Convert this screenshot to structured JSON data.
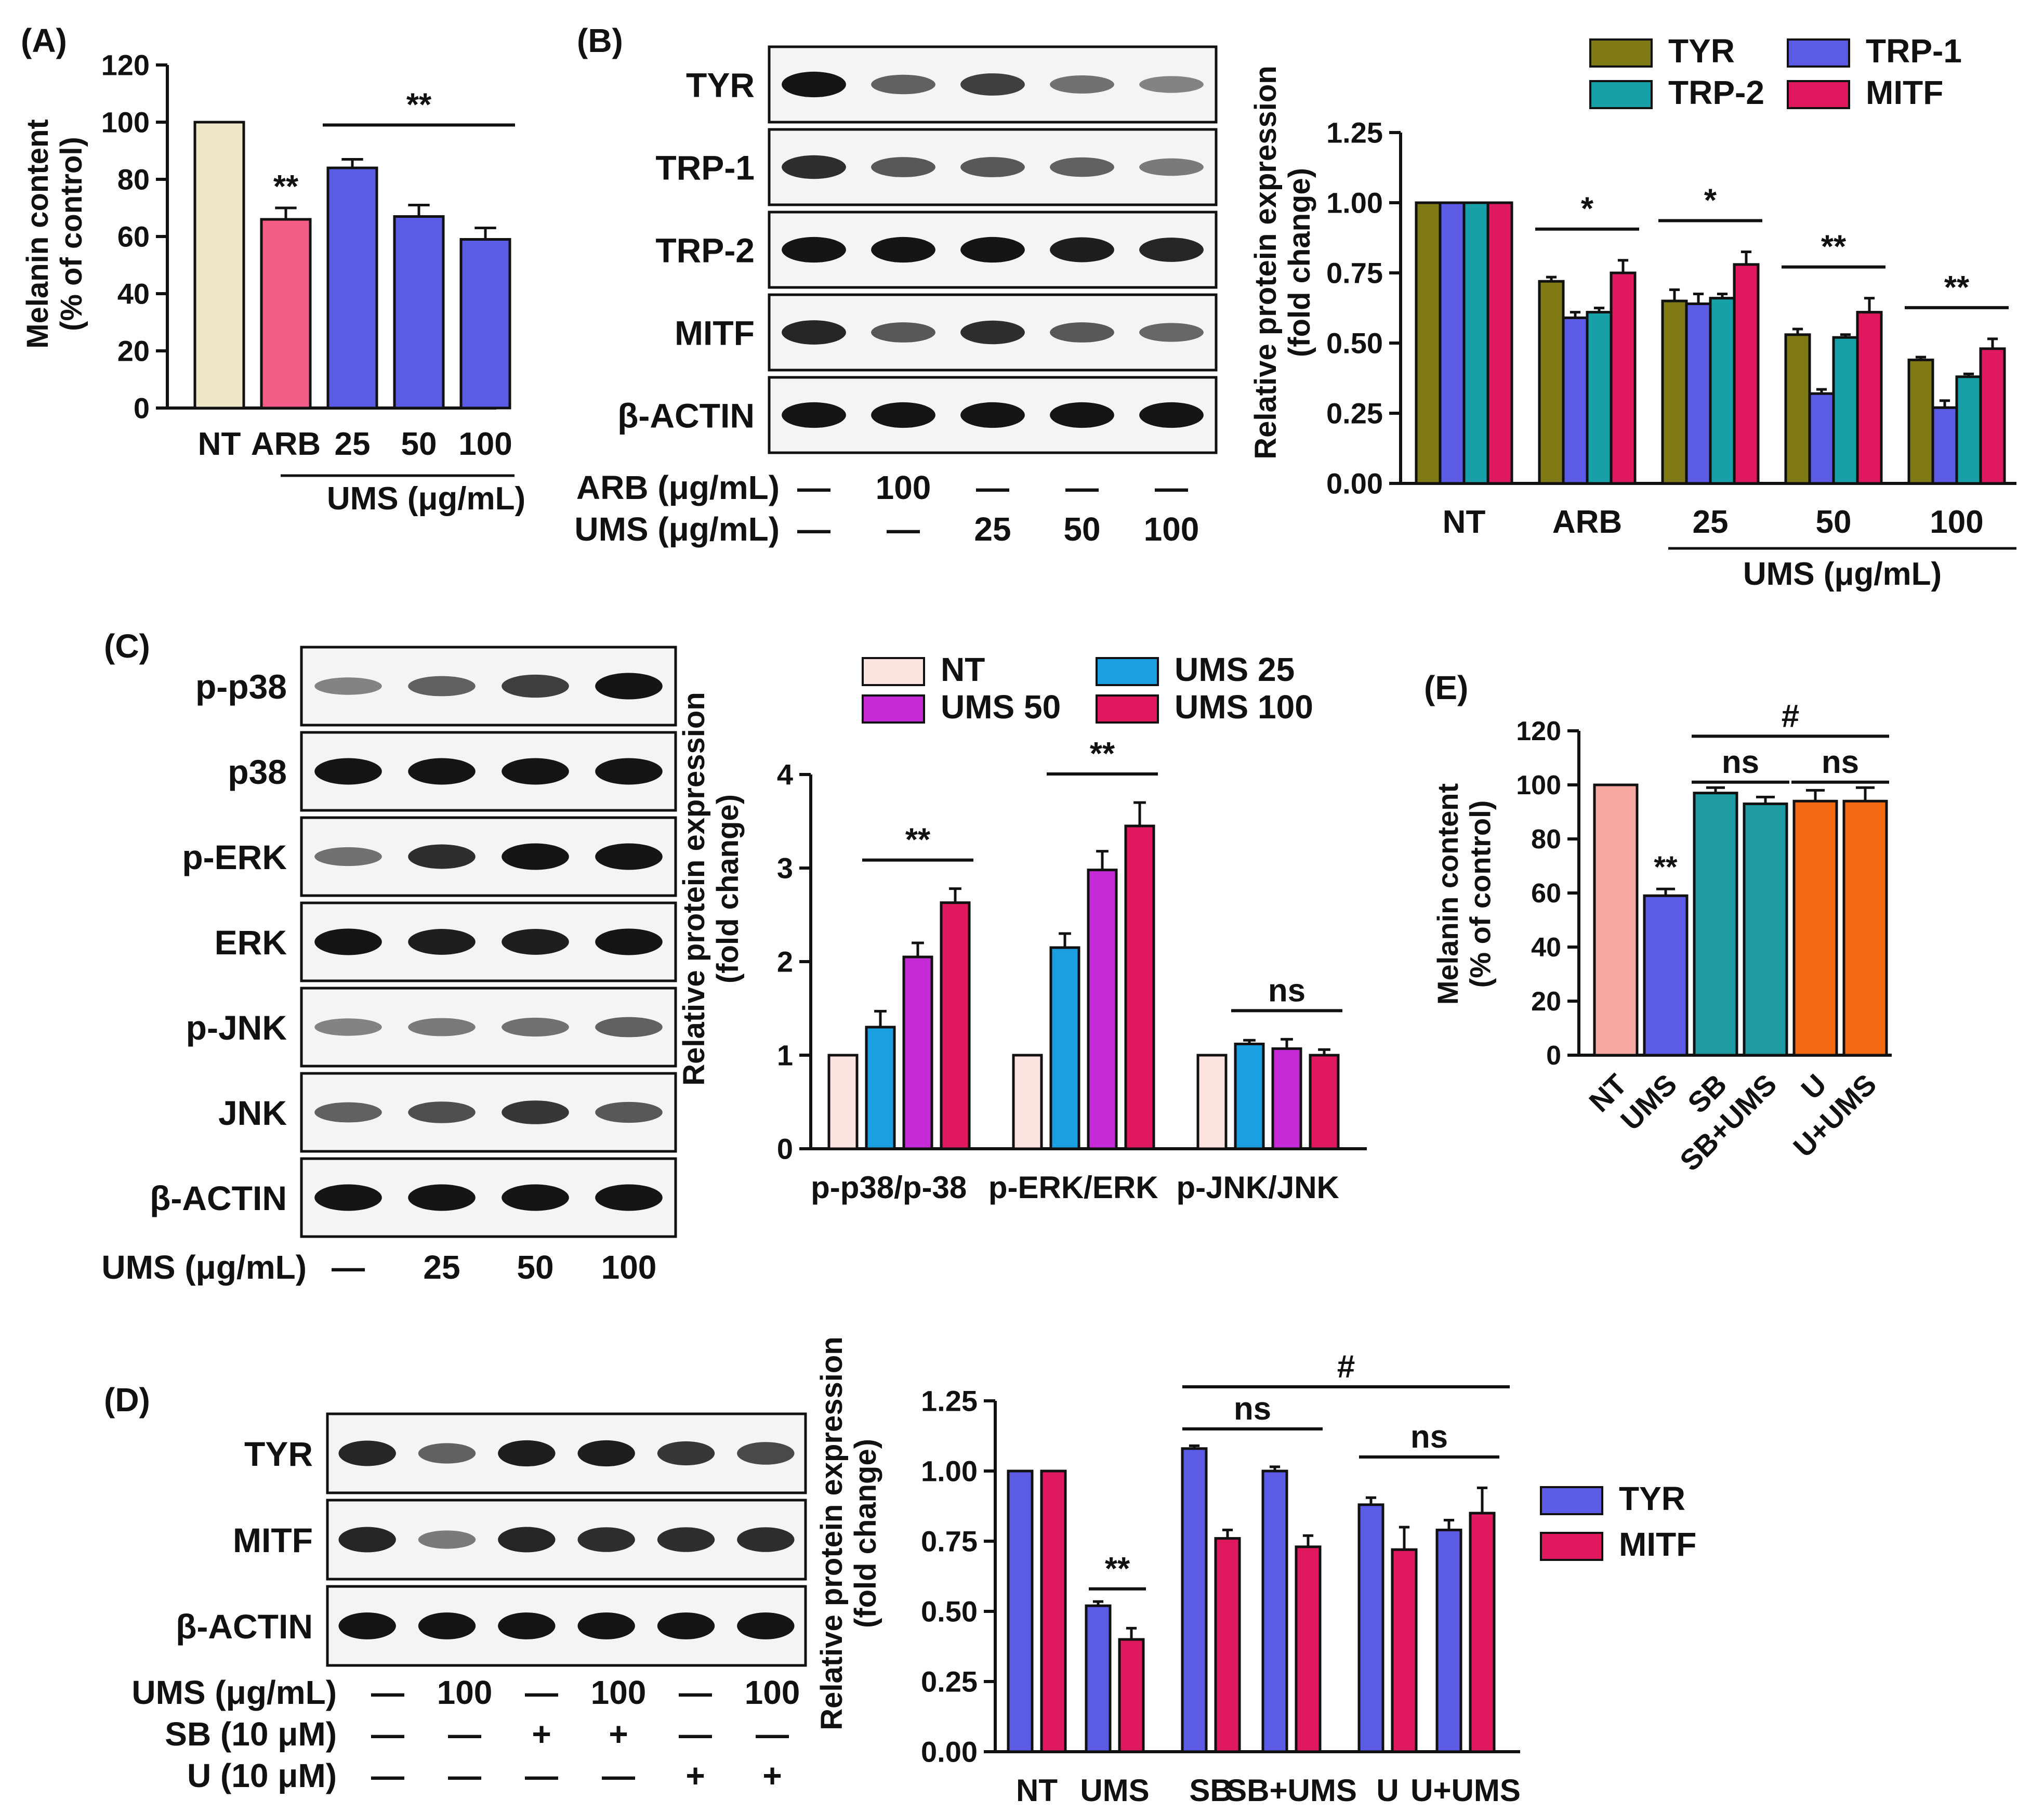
{
  "colors": {
    "nt_beige": "#F0E6C8",
    "arb_pink": "#F25C86",
    "ums_blue": "#5B5BE6",
    "tyr_olive": "#7F7A16",
    "trp1_blue": "#5B5BE6",
    "trp2_teal": "#17A0A8",
    "mitf_crimson": "#E0185F",
    "c_nt": "#FBE3E0",
    "c_ums25": "#1B9FE0",
    "c_ums50": "#C62AD6",
    "c_ums100": "#E0185F",
    "e_nt": "#F7A8A0",
    "e_ums": "#5B5BE6",
    "e_sb": "#1E9AA0",
    "e_u": "#F26A12",
    "d_tyr": "#5B5BE6",
    "d_mitf": "#E0185F",
    "blot_band": "#151515"
  },
  "panel_labels": {
    "a": "(A)",
    "b": "(B)",
    "c": "(C)",
    "d": "(D)",
    "e": "(E)"
  },
  "blots": {
    "b": {
      "rows": [
        "TYR",
        "TRP-1",
        "TRP-2",
        "MITF",
        "β-ACTIN"
      ],
      "treatments": [
        {
          "label": "ARB (μg/mL)",
          "values": [
            "—",
            "100",
            "—",
            "—",
            "—"
          ]
        },
        {
          "label": "UMS (μg/mL)",
          "values": [
            "—",
            "—",
            "25",
            "50",
            "100"
          ]
        }
      ]
    },
    "c": {
      "rows": [
        "p-p38",
        "p38",
        "p-ERK",
        "ERK",
        "p-JNK",
        "JNK",
        "β-ACTIN"
      ],
      "treatments": [
        {
          "label": "UMS (μg/mL)",
          "values": [
            "—",
            "25",
            "50",
            "100"
          ]
        }
      ]
    },
    "d": {
      "rows": [
        "TYR",
        "MITF",
        "β-ACTIN"
      ],
      "treatments": [
        {
          "label": "UMS (μg/mL)",
          "values": [
            "—",
            "100",
            "—",
            "100",
            "—",
            "100"
          ]
        },
        {
          "label": "SB (10 μM)",
          "values": [
            "—",
            "—",
            "+",
            "+",
            "—",
            "—"
          ]
        },
        {
          "label": "U (10 μM)",
          "values": [
            "—",
            "—",
            "—",
            "—",
            "+",
            "+"
          ]
        }
      ]
    }
  },
  "chart_data": [
    {
      "id": "A",
      "type": "bar",
      "title": "",
      "ylabel": "Melanin content",
      "ylabel2": "(% of control)",
      "ylim": [
        0,
        120
      ],
      "yticks": [
        "0",
        "20",
        "40",
        "60",
        "80",
        "100",
        "120"
      ],
      "categories": [
        "NT",
        "ARB",
        "25",
        "50",
        "100"
      ],
      "values": [
        100,
        66,
        84,
        67,
        59
      ],
      "errors": [
        0,
        4,
        3,
        4,
        4
      ],
      "group_label": "UMS (μg/mL)",
      "annotations": [
        {
          "text": "**",
          "target": "ARB"
        },
        {
          "text": "**",
          "span": [
            "25",
            "100"
          ]
        }
      ]
    },
    {
      "id": "B",
      "type": "bar",
      "ylabel": "Relative protein expression",
      "ylabel2": "(fold change)",
      "ylim": [
        0,
        1.25
      ],
      "yticks": [
        "0.00",
        "0.25",
        "0.50",
        "0.75",
        "1.00",
        "1.25"
      ],
      "categories": [
        "NT",
        "ARB",
        "25",
        "50",
        "100"
      ],
      "group_label": "UMS (μg/mL)",
      "series": [
        {
          "name": "TYR",
          "values": [
            1.0,
            0.72,
            0.65,
            0.53,
            0.44
          ],
          "errors": [
            0,
            0.015,
            0.04,
            0.02,
            0.01
          ]
        },
        {
          "name": "TRP-1",
          "values": [
            1.0,
            0.59,
            0.64,
            0.32,
            0.27
          ],
          "errors": [
            0,
            0.02,
            0.035,
            0.015,
            0.025
          ]
        },
        {
          "name": "TRP-2",
          "values": [
            1.0,
            0.61,
            0.66,
            0.52,
            0.38
          ],
          "errors": [
            0,
            0.015,
            0.015,
            0.01,
            0.01
          ]
        },
        {
          "name": "MITF",
          "values": [
            1.0,
            0.75,
            0.78,
            0.61,
            0.48
          ],
          "errors": [
            0,
            0.045,
            0.045,
            0.05,
            0.035
          ]
        }
      ],
      "annotations": [
        "*",
        "*",
        "**",
        "**"
      ]
    },
    {
      "id": "C",
      "type": "bar",
      "ylabel": "Relative protein expression",
      "ylabel2": "(fold change)",
      "ylim": [
        0,
        4
      ],
      "yticks": [
        "0",
        "1",
        "2",
        "3",
        "4"
      ],
      "categories": [
        "p-p38/p-38",
        "p-ERK/ERK",
        "p-JNK/JNK"
      ],
      "series": [
        {
          "name": "NT",
          "values": [
            1.0,
            1.0,
            1.0
          ],
          "errors": [
            0,
            0,
            0
          ]
        },
        {
          "name": "UMS 25",
          "values": [
            1.3,
            2.15,
            1.12
          ],
          "errors": [
            0.17,
            0.15,
            0.04
          ]
        },
        {
          "name": "UMS 50",
          "values": [
            2.05,
            2.98,
            1.07
          ],
          "errors": [
            0.15,
            0.2,
            0.1
          ]
        },
        {
          "name": "UMS 100",
          "values": [
            2.63,
            3.45,
            1.0
          ],
          "errors": [
            0.15,
            0.25,
            0.06
          ]
        }
      ],
      "annotations": [
        "**",
        "**",
        "ns"
      ]
    },
    {
      "id": "E",
      "type": "bar",
      "ylabel": "Melanin content",
      "ylabel2": "(% of control)",
      "ylim": [
        0,
        120
      ],
      "yticks": [
        "0",
        "20",
        "40",
        "60",
        "80",
        "100",
        "120"
      ],
      "categories": [
        "NT",
        "UMS",
        "SB",
        "SB+UMS",
        "U",
        "U+UMS"
      ],
      "values": [
        100,
        59,
        97,
        93,
        94,
        94
      ],
      "errors": [
        0,
        2.5,
        2,
        2.5,
        4,
        5
      ],
      "annotations": [
        "**",
        "ns",
        "ns",
        "#"
      ]
    },
    {
      "id": "D",
      "type": "bar",
      "ylabel": "Relative protein expression",
      "ylabel2": "(fold change)",
      "ylim": [
        0,
        1.25
      ],
      "yticks": [
        "0.00",
        "0.25",
        "0.50",
        "0.75",
        "1.00",
        "1.25"
      ],
      "categories": [
        "NT",
        "UMS",
        "SB",
        "SB+UMS",
        "U",
        "U+UMS"
      ],
      "series": [
        {
          "name": "TYR",
          "values": [
            1.0,
            0.52,
            1.08,
            1.0,
            0.88,
            0.79
          ],
          "errors": [
            0,
            0.015,
            0.01,
            0.015,
            0.025,
            0.035
          ]
        },
        {
          "name": "MITF",
          "values": [
            1.0,
            0.4,
            0.76,
            0.73,
            0.72,
            0.85
          ],
          "errors": [
            0,
            0.04,
            0.03,
            0.04,
            0.08,
            0.09
          ]
        }
      ],
      "annotations": [
        "**",
        "ns",
        "ns",
        "#"
      ]
    }
  ]
}
